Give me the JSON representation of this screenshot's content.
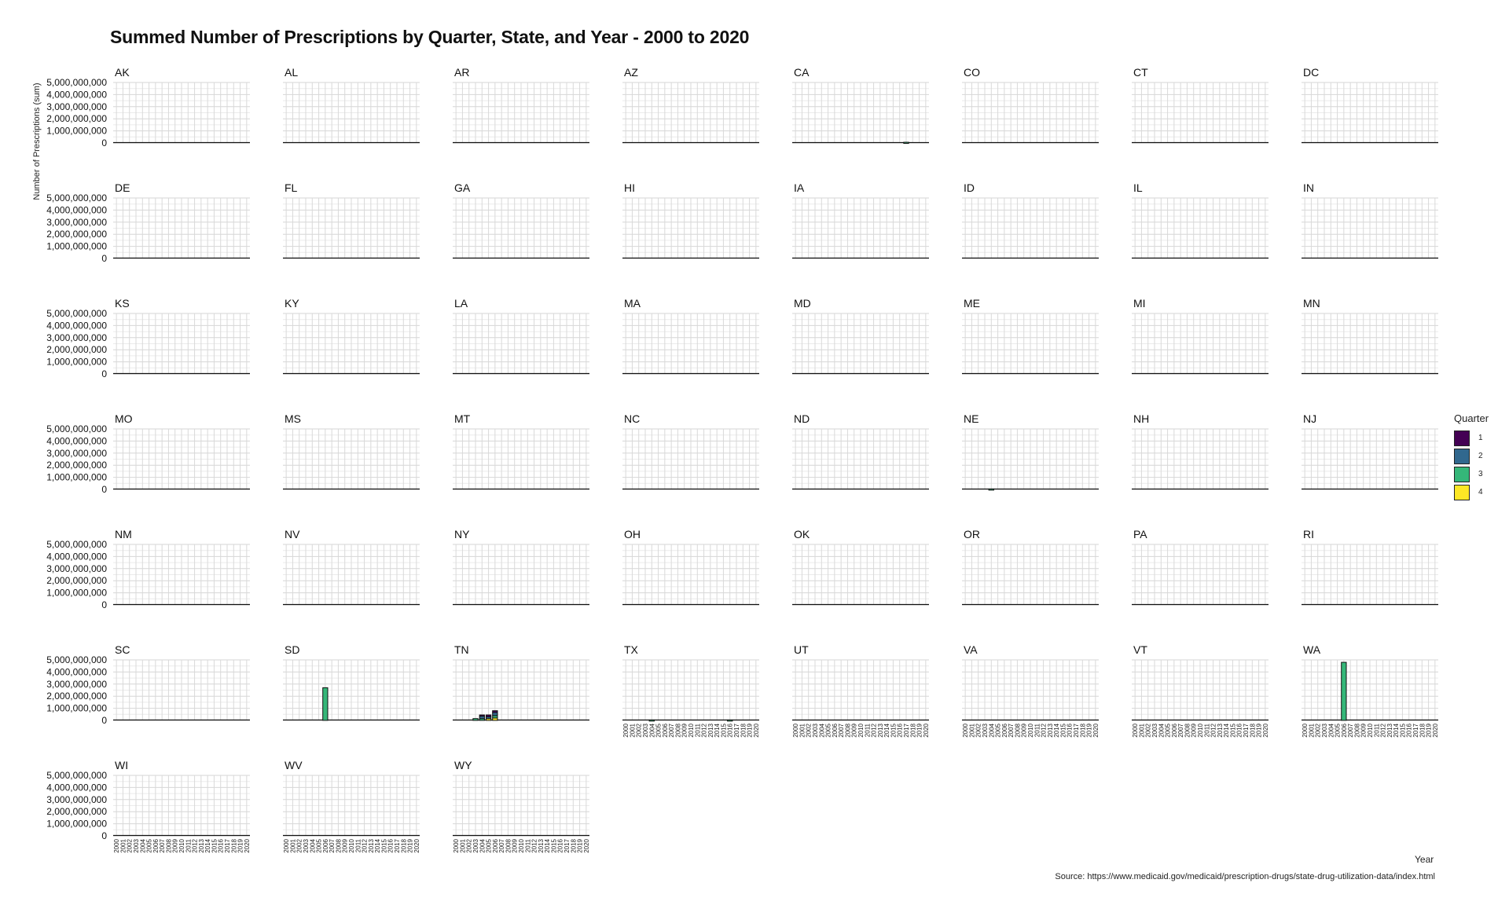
{
  "chart_data": {
    "type": "bar",
    "title": "Summed Number of Prescriptions by Quarter, State, and Year - 2000 to 2020",
    "xlabel": "Year",
    "ylabel": "Number of Prescriptions (sum)",
    "source": "Source: https://www.medicaid.gov/medicaid/prescription-drugs/state-drug-utilization-data/index.html",
    "ylim": [
      0,
      5000000000
    ],
    "y_ticks": [
      "0",
      "1,000,000,000",
      "2,000,000,000",
      "3,000,000,000",
      "4,000,000,000",
      "5,000,000,000"
    ],
    "years": [
      "2000",
      "2001",
      "2002",
      "2003",
      "2004",
      "2005",
      "2006",
      "2007",
      "2008",
      "2009",
      "2010",
      "2011",
      "2012",
      "2013",
      "2014",
      "2015",
      "2016",
      "2017",
      "2018",
      "2019",
      "2020"
    ],
    "legend": {
      "title": "Quarter",
      "placement": "right",
      "items": [
        {
          "label": "1",
          "color": "#440154"
        },
        {
          "label": "2",
          "color": "#31688e"
        },
        {
          "label": "3",
          "color": "#35b779"
        },
        {
          "label": "4",
          "color": "#fde725"
        }
      ]
    },
    "states": [
      "AK",
      "AL",
      "AR",
      "AZ",
      "CA",
      "CO",
      "CT",
      "DC",
      "DE",
      "FL",
      "GA",
      "HI",
      "IA",
      "ID",
      "IL",
      "IN",
      "KS",
      "KY",
      "LA",
      "MA",
      "MD",
      "ME",
      "MI",
      "MN",
      "MO",
      "MS",
      "MT",
      "NC",
      "ND",
      "NE",
      "NH",
      "NJ",
      "NM",
      "NV",
      "NY",
      "OH",
      "OK",
      "OR",
      "PA",
      "RI",
      "SC",
      "SD",
      "TN",
      "TX",
      "UT",
      "VA",
      "VT",
      "WA",
      "WI",
      "WV",
      "WY"
    ],
    "notable_bars": [
      {
        "state": "SD",
        "year": "2006",
        "quarter": "3",
        "value": 2700000000
      },
      {
        "state": "WA",
        "year": "2006",
        "quarter": "3",
        "value": 4800000000
      },
      {
        "state": "TN",
        "year": "2003",
        "quarter": "3",
        "value": 150000000
      },
      {
        "state": "TN",
        "year": "2004",
        "quarter": "1",
        "value": 100000000
      },
      {
        "state": "TN",
        "year": "2004",
        "quarter": "2",
        "value": 200000000
      },
      {
        "state": "TN",
        "year": "2004",
        "quarter": "3",
        "value": 150000000
      },
      {
        "state": "TN",
        "year": "2005",
        "quarter": "1",
        "value": 150000000
      },
      {
        "state": "TN",
        "year": "2005",
        "quarter": "2",
        "value": 150000000
      },
      {
        "state": "TN",
        "year": "2005",
        "quarter": "4",
        "value": 150000000
      },
      {
        "state": "TN",
        "year": "2006",
        "quarter": "1",
        "value": 150000000
      },
      {
        "state": "TN",
        "year": "2006",
        "quarter": "2",
        "value": 250000000
      },
      {
        "state": "TN",
        "year": "2006",
        "quarter": "3",
        "value": 200000000
      },
      {
        "state": "TN",
        "year": "2006",
        "quarter": "4",
        "value": 200000000
      },
      {
        "state": "CA",
        "year": "2017",
        "quarter": "3",
        "value": 60000000
      },
      {
        "state": "NE",
        "year": "2004",
        "quarter": "3",
        "value": 40000000
      },
      {
        "state": "TX",
        "year": "2004",
        "quarter": "3",
        "value": 40000000
      },
      {
        "state": "TX",
        "year": "2016",
        "quarter": "3",
        "value": 40000000
      }
    ]
  }
}
